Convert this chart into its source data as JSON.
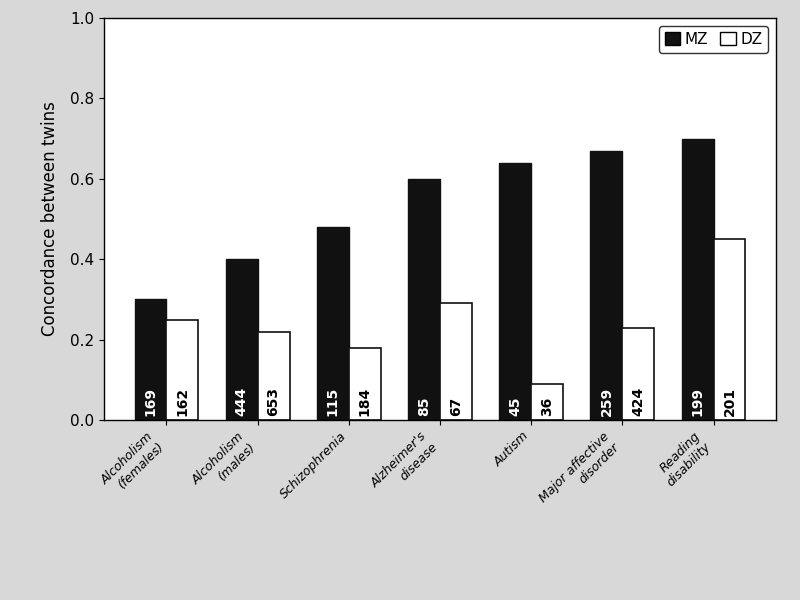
{
  "categories": [
    "Alcoholism\n(females)",
    "Alcoholism\n(males)",
    "Schizophrenia",
    "Alzheimer's\ndisease",
    "Autism",
    "Major affective\ndisorder",
    "Reading\ndisability"
  ],
  "mz_values": [
    0.3,
    0.4,
    0.48,
    0.6,
    0.64,
    0.67,
    0.7
  ],
  "dz_values": [
    0.25,
    0.22,
    0.18,
    0.29,
    0.09,
    0.23,
    0.45
  ],
  "mz_labels": [
    "169",
    "444",
    "115",
    "85",
    "45",
    "259",
    "199"
  ],
  "dz_labels": [
    "162",
    "653",
    "184",
    "67",
    "36",
    "424",
    "201"
  ],
  "mz_color": "#111111",
  "dz_color": "#ffffff",
  "dz_edgecolor": "#111111",
  "ylabel": "Concordance between twins",
  "ylim": [
    0.0,
    1.0
  ],
  "yticks": [
    0.0,
    0.2,
    0.4,
    0.6,
    0.8,
    1.0
  ],
  "bar_width": 0.35,
  "legend_mz": "MZ",
  "legend_dz": "DZ",
  "axis_fontsize": 12,
  "tick_fontsize": 11,
  "label_fontsize": 10,
  "background_color": "#d8d8d8",
  "plot_bg_color": "#ffffff"
}
